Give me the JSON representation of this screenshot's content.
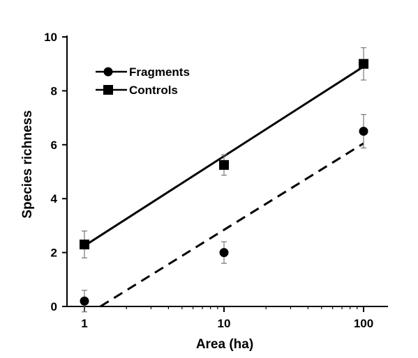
{
  "chart_data": {
    "type": "scatter",
    "xlabel": "Area (ha)",
    "ylabel": "Species richness",
    "x_scale": "log",
    "x_ticks": [
      1,
      10,
      100
    ],
    "x_tick_labels": [
      "1",
      "10",
      "100"
    ],
    "ylim": [
      0,
      10
    ],
    "y_ticks": [
      0,
      2,
      4,
      6,
      8,
      10
    ],
    "y_tick_labels": [
      "0",
      "2",
      "4",
      "6",
      "8",
      "10"
    ],
    "grid": false,
    "legend_position": "top-left",
    "series": [
      {
        "name": "Fragments",
        "marker": "circle",
        "x": [
          1,
          10,
          100
        ],
        "y": [
          0.2,
          2.0,
          6.5
        ],
        "error": [
          0.4,
          0.4,
          0.62
        ],
        "fit": {
          "style": "dashed",
          "x": [
            1.3,
            100
          ],
          "y": [
            0.0,
            6.05
          ]
        }
      },
      {
        "name": "Controls",
        "marker": "square",
        "x": [
          1,
          10,
          100
        ],
        "y": [
          2.3,
          5.25,
          9.0
        ],
        "error": [
          0.5,
          0.38,
          0.6
        ],
        "fit": {
          "style": "solid",
          "x": [
            1,
            100
          ],
          "y": [
            2.25,
            8.9
          ]
        }
      }
    ],
    "colors": {
      "marks": "#000000",
      "background": "#ffffff"
    }
  }
}
